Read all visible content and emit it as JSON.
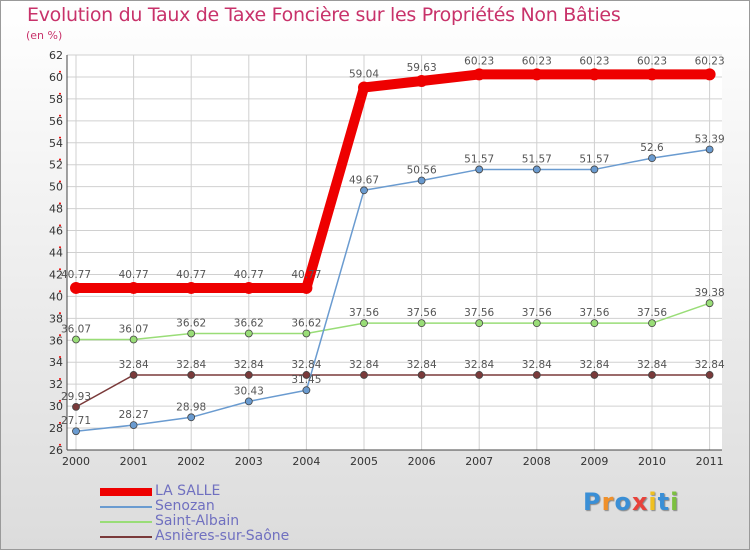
{
  "chart_data": {
    "type": "line",
    "title": "Evolution du Taux de Taxe Foncière sur les Propriétés Non Bâties",
    "subtitle": "(en %)",
    "xlabel": "",
    "ylabel": "",
    "x": [
      "2000",
      "2001",
      "2002",
      "2003",
      "2004",
      "2005",
      "2006",
      "2007",
      "2008",
      "2009",
      "2010",
      "2011"
    ],
    "ylim": [
      26,
      62
    ],
    "yticks": [
      "26",
      "28",
      "30",
      "32",
      "34",
      "36",
      "38",
      "40",
      "42",
      "44",
      "46",
      "48",
      "50",
      "52",
      "54",
      "56",
      "58",
      "60",
      "62"
    ],
    "grid": true,
    "legend_position": "bottom-left",
    "series": [
      {
        "name": "LA SALLE",
        "color": "#ee0000",
        "values": [
          40.77,
          40.77,
          40.77,
          40.77,
          40.77,
          59.04,
          59.63,
          60.23,
          60.23,
          60.23,
          60.23,
          60.23
        ],
        "labels": [
          "40.77",
          "40.77",
          "40.77",
          "40.77",
          "40.77",
          "59.04",
          "59.63",
          "60.23",
          "60.23",
          "60.23",
          "60.23",
          "60.23"
        ]
      },
      {
        "name": "Senozan",
        "color": "#6a9bd0",
        "values": [
          27.71,
          28.27,
          28.98,
          30.43,
          31.45,
          49.67,
          50.56,
          51.57,
          51.57,
          51.57,
          52.6,
          53.39
        ],
        "labels": [
          "27.71",
          "28.27",
          "28.98",
          "30.43",
          "31.45",
          "49.67",
          "50.56",
          "51.57",
          "51.57",
          "51.57",
          "52.6",
          "53.39"
        ]
      },
      {
        "name": "Saint-Albain",
        "color": "#99dd77",
        "values": [
          36.07,
          36.07,
          36.62,
          36.62,
          36.62,
          37.56,
          37.56,
          37.56,
          37.56,
          37.56,
          37.56,
          39.38
        ],
        "labels": [
          "36.07",
          "36.07",
          "36.62",
          "36.62",
          "36.62",
          "37.56",
          "37.56",
          "37.56",
          "37.56",
          "37.56",
          "37.56",
          "39.38"
        ]
      },
      {
        "name": "Asnières-sur-Saône",
        "color": "#7a3a3a",
        "values": [
          29.93,
          32.84,
          32.84,
          32.84,
          32.84,
          32.84,
          32.84,
          32.84,
          32.84,
          32.84,
          32.84,
          32.84
        ],
        "labels": [
          "29.93",
          "32.84",
          "32.84",
          "32.84",
          "32.84",
          "32.84",
          "32.84",
          "32.84",
          "32.84",
          "32.84",
          "32.84",
          "32.84"
        ]
      }
    ]
  },
  "logo": {
    "text": "Proxiti"
  }
}
